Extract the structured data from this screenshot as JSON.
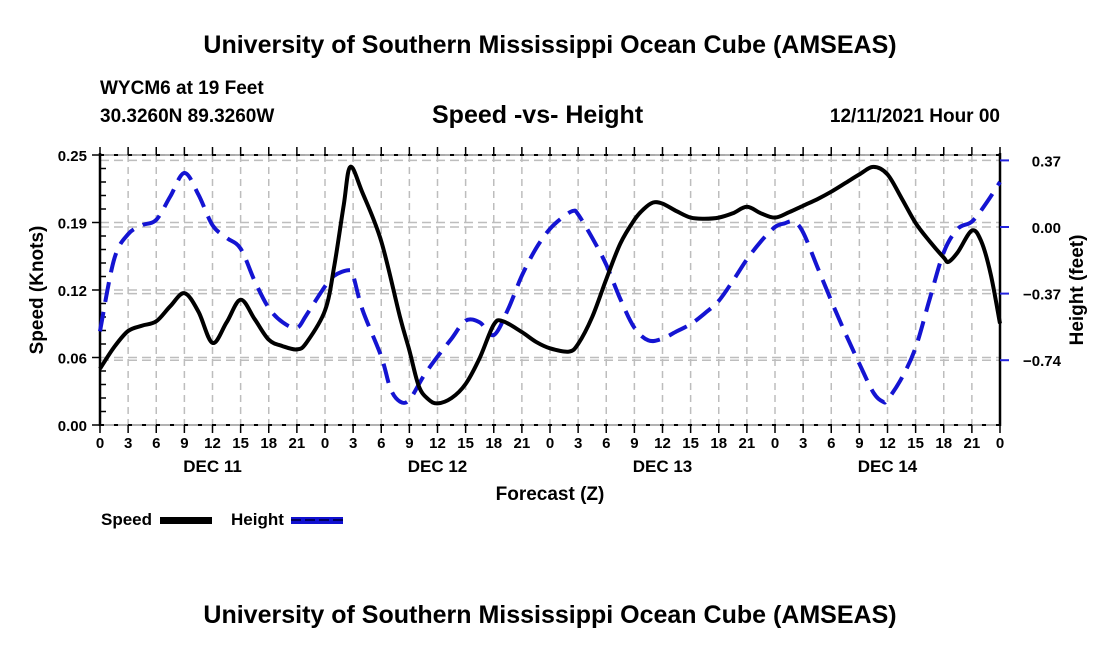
{
  "header": {
    "title": "University of Southern Mississippi Ocean Cube (AMSEAS)",
    "station": "WYCM6 at 19 Feet",
    "coords": "30.3260N  89.3260W",
    "date": "12/11/2021 Hour 00"
  },
  "footer": {
    "title": "University of Southern Mississippi Ocean Cube (AMSEAS)"
  },
  "legend": {
    "items": [
      {
        "label": "Speed",
        "color": "#000000",
        "style": "solid"
      },
      {
        "label": "Height",
        "color": "#0000cc",
        "style": "dashed"
      }
    ]
  },
  "chart_data": {
    "type": "line",
    "title": "Speed -vs- Height",
    "xlabel": "Forecast (Z)",
    "ylabel": "Speed (Knots)",
    "y2label": "Height (feet)",
    "xlim": [
      0,
      96
    ],
    "ylim": [
      0,
      0.25
    ],
    "y2lim": [
      -1.1,
      0.4
    ],
    "grid": true,
    "legend_position": "bottom-left",
    "x_tick_labels": [
      "0",
      "3",
      "6",
      "9",
      "12",
      "15",
      "18",
      "21",
      "0",
      "3",
      "6",
      "9",
      "12",
      "15",
      "18",
      "21",
      "0",
      "3",
      "6",
      "9",
      "12",
      "15",
      "18",
      "21",
      "0",
      "3",
      "6",
      "9",
      "12",
      "15",
      "18",
      "21",
      "0"
    ],
    "x_ticks_hours": [
      0,
      3,
      6,
      9,
      12,
      15,
      18,
      21,
      24,
      27,
      30,
      33,
      36,
      39,
      42,
      45,
      48,
      51,
      54,
      57,
      60,
      63,
      66,
      69,
      72,
      75,
      78,
      81,
      84,
      87,
      90,
      93,
      96
    ],
    "day_labels": [
      {
        "label": "DEC 11",
        "center_hour": 12
      },
      {
        "label": "DEC 12",
        "center_hour": 36
      },
      {
        "label": "DEC 13",
        "center_hour": 60
      },
      {
        "label": "DEC 14",
        "center_hour": 84
      }
    ],
    "y_ticks": [
      {
        "value": 0.0,
        "label": "0.00"
      },
      {
        "value": 0.0625,
        "label": "0.06"
      },
      {
        "value": 0.125,
        "label": "0.12"
      },
      {
        "value": 0.1875,
        "label": "0.19"
      },
      {
        "value": 0.25,
        "label": "0.25"
      }
    ],
    "y2_ticks": [
      {
        "value": 0.37,
        "label": "0.37"
      },
      {
        "value": 0.0,
        "label": "0.00"
      },
      {
        "value": -0.37,
        "label": "-0.37"
      },
      {
        "value": -0.74,
        "label": "-0.74"
      }
    ],
    "series": [
      {
        "name": "Speed",
        "axis": "left",
        "color": "#000000",
        "style": "solid",
        "x": [
          0,
          1.5,
          3,
          4.5,
          6,
          7.5,
          9,
          10.5,
          12,
          13.5,
          15,
          16.5,
          18,
          19.5,
          21,
          22,
          24,
          25,
          26,
          26.7,
          28,
          30,
          32,
          33,
          34,
          35,
          36,
          37.5,
          39,
          40.5,
          42,
          43,
          45,
          46.5,
          48,
          50,
          51,
          52.5,
          54,
          55.5,
          57,
          58,
          59,
          60,
          61.5,
          63,
          64.5,
          66,
          67.5,
          69,
          70.5,
          72,
          73.5,
          75,
          76.5,
          78,
          79.5,
          81,
          82.5,
          84,
          85.5,
          87,
          88.5,
          90,
          90.5,
          91.5,
          93,
          94,
          95,
          96
        ],
        "values": [
          0.052,
          0.072,
          0.087,
          0.092,
          0.096,
          0.11,
          0.122,
          0.105,
          0.076,
          0.095,
          0.116,
          0.098,
          0.079,
          0.073,
          0.07,
          0.076,
          0.106,
          0.148,
          0.204,
          0.239,
          0.215,
          0.17,
          0.1,
          0.069,
          0.036,
          0.024,
          0.02,
          0.025,
          0.038,
          0.062,
          0.093,
          0.096,
          0.086,
          0.077,
          0.071,
          0.068,
          0.075,
          0.1,
          0.135,
          0.168,
          0.19,
          0.2,
          0.206,
          0.205,
          0.198,
          0.192,
          0.191,
          0.192,
          0.196,
          0.202,
          0.196,
          0.192,
          0.197,
          0.203,
          0.209,
          0.216,
          0.224,
          0.232,
          0.239,
          0.232,
          0.21,
          0.187,
          0.17,
          0.155,
          0.151,
          0.16,
          0.18,
          0.17,
          0.14,
          0.094
        ]
      },
      {
        "name": "Height",
        "axis": "right",
        "color": "#0000cc",
        "style": "dashed",
        "x": [
          0,
          1.5,
          3,
          4.5,
          6,
          7.5,
          9,
          10.5,
          12,
          13.5,
          15,
          16.5,
          18,
          19.5,
          21,
          22,
          24,
          25,
          26.5,
          27,
          28,
          30,
          31,
          32,
          33,
          34.5,
          36,
          37.5,
          39,
          40.5,
          42,
          43.5,
          45,
          46.5,
          48,
          49.5,
          50.5,
          51,
          52.5,
          54,
          55.5,
          57,
          58.5,
          60,
          61.5,
          63,
          64.5,
          66,
          67.5,
          69,
          70.5,
          72,
          73,
          74,
          75,
          76.5,
          78,
          79.5,
          81,
          82.5,
          83.5,
          84,
          85.5,
          87,
          88.5,
          90,
          91.5,
          93,
          94.5,
          96
        ],
        "values": [
          -0.58,
          -0.18,
          -0.04,
          0.01,
          0.04,
          0.17,
          0.3,
          0.18,
          0.01,
          -0.06,
          -0.12,
          -0.3,
          -0.45,
          -0.53,
          -0.56,
          -0.49,
          -0.33,
          -0.27,
          -0.24,
          -0.27,
          -0.46,
          -0.72,
          -0.9,
          -0.97,
          -0.96,
          -0.83,
          -0.72,
          -0.62,
          -0.52,
          -0.53,
          -0.6,
          -0.46,
          -0.27,
          -0.12,
          -0.01,
          0.06,
          0.09,
          0.07,
          -0.06,
          -0.21,
          -0.4,
          -0.56,
          -0.63,
          -0.62,
          -0.58,
          -0.54,
          -0.48,
          -0.41,
          -0.3,
          -0.18,
          -0.08,
          0.0,
          0.02,
          0.03,
          -0.03,
          -0.22,
          -0.41,
          -0.59,
          -0.76,
          -0.92,
          -0.97,
          -0.96,
          -0.84,
          -0.67,
          -0.4,
          -0.14,
          -0.01,
          0.03,
          0.13,
          0.25
        ]
      }
    ]
  }
}
